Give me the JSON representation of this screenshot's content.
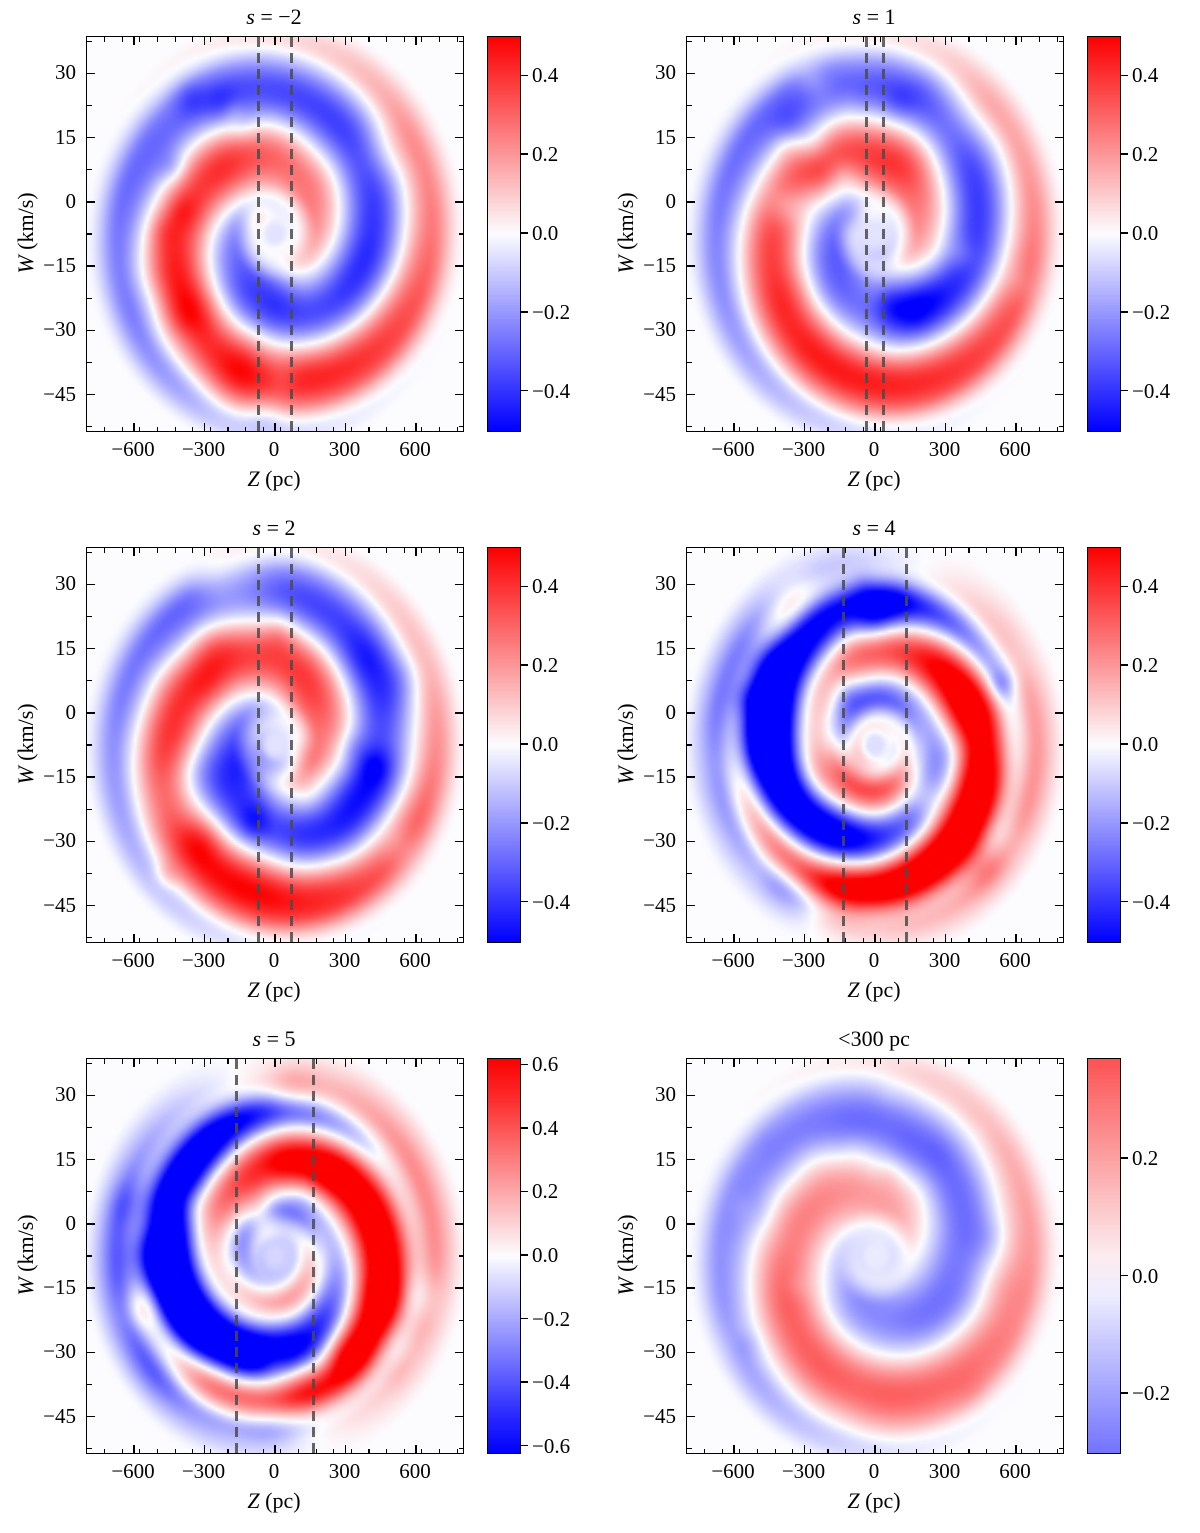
{
  "axes": {
    "xlabel_var": "Z",
    "xlabel_rest": " (pc)",
    "ylabel_var": "W",
    "ylabel_rest": " (km/s)",
    "x_tick_values": [
      -600,
      -300,
      0,
      300,
      600
    ],
    "x_tick_labels": [
      "−600",
      "−300",
      "0",
      "300",
      "600"
    ],
    "y_tick_values": [
      30,
      15,
      0,
      -15,
      -30,
      -45
    ],
    "y_tick_labels": [
      "30",
      "15",
      "0",
      "−15",
      "−30",
      "−45"
    ],
    "x_range_pc": [
      -800,
      800
    ],
    "y_range_kms": [
      -53.5,
      38.5
    ],
    "x_minor_step_pc": 75,
    "y_minor_step_kms": 7.5
  },
  "colors": {
    "colormap": "bwr",
    "positive_red": "#ff0000",
    "negative_blue": "#0000ff",
    "zero_white": "#ffffff",
    "dashed_line": "#4b4b4b",
    "axis_black": "#000000",
    "plot_background": "#fbfbfe"
  },
  "chart_data": [
    {
      "type": "heatmap",
      "title": "s = −2",
      "title_var": "s",
      "title_rest": " = −2",
      "xlabel": "Z (pc)",
      "ylabel": "W (km/s)",
      "x_range_pc": [
        -800,
        800
      ],
      "y_range_kms": [
        -53.5,
        38.5
      ],
      "dashed_lines_z_pc": [
        -70,
        70
      ],
      "colorbar": {
        "vmax": 0.5,
        "vmin": -0.5,
        "tick_values": [
          0.4,
          0.2,
          0.0,
          -0.2,
          -0.4
        ],
        "tick_labels": [
          "0.4",
          "0.2",
          "0.0",
          "−0.2",
          "−0.4"
        ]
      },
      "description": "One-armed Z–W phase spiral; red = positive residual, blue = negative; strongest red arc near W ≈ −33 km/s, outer blue ring near W ≈ 30 km/s.",
      "spiral_model": {
        "theta0": 0.35,
        "winding": 8.0,
        "r0": 0.2,
        "amplitude": 0.38,
        "dipole": 0.0,
        "dipole_angle": 0.0,
        "noise_amp": 0.1,
        "noise_seed": 11,
        "color_scale": 0.5,
        "center_tint": -0.05,
        "blue_bias": 1.0,
        "spiral_fade": [
          0.88,
          1.12
        ],
        "bottom_boost": 0.38
      }
    },
    {
      "type": "heatmap",
      "title": "s = 1",
      "title_var": "s",
      "title_rest": " = 1",
      "xlabel": "Z (pc)",
      "ylabel": "W (km/s)",
      "x_range_pc": [
        -800,
        800
      ],
      "y_range_kms": [
        -53.5,
        38.5
      ],
      "dashed_lines_z_pc": [
        -35,
        35
      ],
      "colorbar": {
        "vmax": 0.5,
        "vmin": -0.5,
        "tick_values": [
          0.4,
          0.2,
          0.0,
          -0.2,
          -0.4
        ],
        "tick_labels": [
          "0.4",
          "0.2",
          "0.0",
          "−0.2",
          "−0.4"
        ]
      },
      "description": "One-armed phase spiral similar to s = −2; red arm on left and bottom, blue inter-arm on top and right.",
      "spiral_model": {
        "theta0": 0.12,
        "winding": 8.0,
        "r0": 0.2,
        "amplitude": 0.38,
        "dipole": 0.0,
        "dipole_angle": 0.0,
        "noise_amp": 0.1,
        "noise_seed": 27,
        "color_scale": 0.5,
        "center_tint": -0.05,
        "blue_bias": 1.0,
        "spiral_fade": [
          0.88,
          1.12
        ],
        "bottom_boost": 0.38
      }
    },
    {
      "type": "heatmap",
      "title": "s = 2",
      "title_var": "s",
      "title_rest": " = 2",
      "xlabel": "Z (pc)",
      "ylabel": "W (km/s)",
      "x_range_pc": [
        -800,
        800
      ],
      "y_range_kms": [
        -53.5,
        38.5
      ],
      "dashed_lines_z_pc": [
        -70,
        70
      ],
      "colorbar": {
        "vmax": 0.5,
        "vmin": -0.5,
        "tick_values": [
          0.4,
          0.2,
          0.0,
          -0.2,
          -0.4
        ],
        "tick_labels": [
          "0.4",
          "0.2",
          "0.0",
          "−0.2",
          "−0.4"
        ]
      },
      "description": "One-armed phase spiral; strongest red along bottom arc near W ≈ −32 km/s, deep blue knot at left (Z ≈ −600, W ≈ −25).",
      "spiral_model": {
        "theta0": -0.15,
        "winding": 8.0,
        "r0": 0.2,
        "amplitude": 0.4,
        "dipole": 0.0,
        "dipole_angle": 0.0,
        "noise_amp": 0.11,
        "noise_seed": 35,
        "color_scale": 0.5,
        "center_tint": -0.05,
        "blue_bias": 1.0,
        "spiral_fade": [
          0.88,
          1.12
        ],
        "bottom_boost": 0.38
      }
    },
    {
      "type": "heatmap",
      "title": "s = 4",
      "title_var": "s",
      "title_rest": " = 4",
      "xlabel": "Z (pc)",
      "ylabel": "W (km/s)",
      "x_range_pc": [
        -800,
        800
      ],
      "y_range_kms": [
        -53.5,
        38.5
      ],
      "dashed_lines_z_pc": [
        -135,
        135
      ],
      "colorbar": {
        "vmax": 0.5,
        "vmin": -0.5,
        "tick_values": [
          0.4,
          0.2,
          0.0,
          -0.2,
          -0.4
        ],
        "tick_labels": [
          "0.4",
          "0.2",
          "0.0",
          "−0.2",
          "−0.4"
        ]
      },
      "description": "Noisier spiral; broad blue crescent on left, red patches at upper right (Z ≈ 200–400, W ≈ 10) and bottom right (Z ≈ 150–450, W ≈ −30).",
      "spiral_model": {
        "theta0": 4.4,
        "winding": -11.0,
        "r0": 0.2,
        "amplitude": 0.44,
        "dipole": 0.25,
        "dipole_angle": -0.3,
        "noise_amp": 0.13,
        "noise_seed": 43,
        "color_scale": 0.5,
        "center_tint": -0.05,
        "blue_bias": 1.15,
        "spiral_fade": [
          0.72,
          0.96
        ],
        "bottom_boost": 0.38
      }
    },
    {
      "type": "heatmap",
      "title": "s = 5",
      "title_var": "s",
      "title_rest": " = 5",
      "xlabel": "Z (pc)",
      "ylabel": "W (km/s)",
      "x_range_pc": [
        -800,
        800
      ],
      "y_range_kms": [
        -53.5,
        38.5
      ],
      "dashed_lines_z_pc": [
        -165,
        165
      ],
      "colorbar": {
        "vmax": 0.62,
        "vmin": -0.62,
        "tick_values": [
          0.6,
          0.4,
          0.2,
          0.0,
          -0.2,
          -0.4,
          -0.6
        ],
        "tick_labels": [
          "0.6",
          "0.4",
          "0.2",
          "0.0",
          "−0.2",
          "−0.4",
          "−0.6"
        ]
      },
      "description": "Strong asymmetry: saturated blue over left and bottom (deepest near Z ≈ −100, W ≈ −43), saturated red blob at Z ≈ 250, W ≈ −29 and red wedge at upper right.",
      "spiral_model": {
        "theta0": 4.6,
        "winding": -11.0,
        "r0": 0.2,
        "amplitude": 0.5,
        "dipole": 0.3,
        "dipole_angle": 0.25,
        "noise_amp": 0.14,
        "noise_seed": 58,
        "color_scale": 0.6,
        "center_tint": -0.07,
        "blue_bias": 1.3,
        "spiral_fade": [
          0.7,
          0.95
        ],
        "bottom_boost": 0.38
      }
    },
    {
      "type": "heatmap",
      "title": "<300 pc",
      "title_var": "",
      "title_rest": "<300 pc",
      "xlabel": "Z (pc)",
      "ylabel": "W (km/s)",
      "x_range_pc": [
        -800,
        800
      ],
      "y_range_kms": [
        -53.5,
        38.5
      ],
      "dashed_lines_z_pc": [],
      "colorbar": {
        "vmax": 0.37,
        "vmin": -0.3,
        "tick_values": [
          0.2,
          0.0,
          -0.2
        ],
        "tick_labels": [
          "0.2",
          "0.0",
          "−0.2"
        ]
      },
      "description": "Smooth one-armed phase spiral for stars within 300 pc; salmon-red arm winding ~1.2 turns from centre to lower right, soft blue inter-arm; no dashed guide lines.",
      "spiral_model": {
        "theta0": 0.35,
        "winding": 7.2,
        "r0": 0.1,
        "amplitude": 0.3,
        "dipole": 0.0,
        "dipole_angle": 0.0,
        "noise_amp": 0.045,
        "noise_seed": 66,
        "color_scale": 0.55,
        "center_tint": -0.035,
        "blue_bias": 1.05,
        "spiral_fade": [
          0.88,
          1.1
        ],
        "bottom_boost": 0.3
      }
    }
  ]
}
